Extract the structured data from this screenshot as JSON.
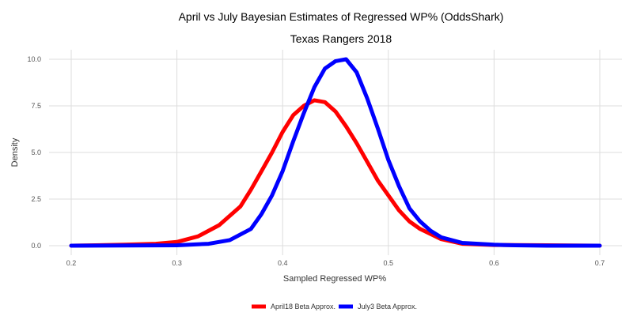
{
  "chart_data": {
    "type": "line",
    "title": "April vs July Bayesian Estimates of Regressed WP% (OddsShark)",
    "subtitle": "Texas Rangers 2018",
    "xlabel": "Sampled Regressed WP%",
    "ylabel": "Density",
    "xlim": [
      0.2,
      0.7
    ],
    "ylim": [
      0,
      10
    ],
    "x_ticks": [
      "0.2",
      "0.3",
      "0.4",
      "0.5",
      "0.6",
      "0.7"
    ],
    "y_ticks": [
      "0.0",
      "2.5",
      "5.0",
      "7.5",
      "10.0"
    ],
    "grid": true,
    "legend_position": "bottom",
    "series": [
      {
        "name": "April18 Beta Approx.",
        "color": "#ff0000",
        "x": [
          0.2,
          0.25,
          0.28,
          0.3,
          0.32,
          0.34,
          0.36,
          0.37,
          0.38,
          0.39,
          0.4,
          0.41,
          0.42,
          0.43,
          0.44,
          0.45,
          0.46,
          0.47,
          0.48,
          0.49,
          0.5,
          0.51,
          0.52,
          0.53,
          0.55,
          0.57,
          0.6,
          0.65,
          0.7
        ],
        "y": [
          0.0,
          0.05,
          0.1,
          0.2,
          0.5,
          1.1,
          2.1,
          3.0,
          4.0,
          5.0,
          6.1,
          7.0,
          7.5,
          7.8,
          7.7,
          7.2,
          6.4,
          5.5,
          4.5,
          3.5,
          2.7,
          1.9,
          1.3,
          0.9,
          0.35,
          0.1,
          0.04,
          0.02,
          0.0
        ]
      },
      {
        "name": "July3 Beta Approx.",
        "color": "#0000ff",
        "x": [
          0.2,
          0.3,
          0.33,
          0.35,
          0.37,
          0.38,
          0.39,
          0.4,
          0.41,
          0.42,
          0.43,
          0.44,
          0.45,
          0.46,
          0.47,
          0.48,
          0.49,
          0.5,
          0.51,
          0.52,
          0.53,
          0.54,
          0.55,
          0.57,
          0.6,
          0.62,
          0.65,
          0.7
        ],
        "y": [
          0.0,
          0.02,
          0.1,
          0.3,
          0.9,
          1.7,
          2.7,
          4.0,
          5.6,
          7.1,
          8.5,
          9.5,
          9.9,
          10.0,
          9.3,
          7.9,
          6.3,
          4.6,
          3.2,
          2.0,
          1.3,
          0.8,
          0.45,
          0.15,
          0.05,
          0.02,
          0.0,
          0.0
        ]
      }
    ]
  }
}
